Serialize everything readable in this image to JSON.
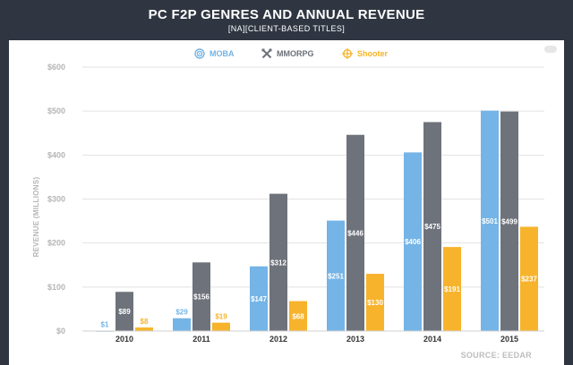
{
  "header": {
    "title": "PC F2P GENRES AND ANNUAL REVENUE",
    "subtitle": "[NA][CLIENT-BASED TITLES]"
  },
  "source": "SOURCE: EEDAR",
  "colors": {
    "moba": "#74b4e6",
    "mmorpg": "#6e727b",
    "shooter": "#f7b32b",
    "grid": "#e2e2e2"
  },
  "chart_data": {
    "type": "bar",
    "title": "PC F2P GENRES AND ANNUAL REVENUE",
    "subtitle": "[NA][CLIENT-BASED TITLES]",
    "xlabel": "",
    "ylabel": "REVENUE (MILLIONS)",
    "ylim": [
      0,
      600
    ],
    "yticks": [
      0,
      100,
      200,
      300,
      400,
      500,
      600
    ],
    "ytick_labels": [
      "$0",
      "$100",
      "$200",
      "$300",
      "$400",
      "$500",
      "$600"
    ],
    "grid": true,
    "legend_position": "top-center",
    "categories": [
      "2010",
      "2011",
      "2012",
      "2013",
      "2014",
      "2015"
    ],
    "series": [
      {
        "name": "MOBA",
        "icon": "target-icon",
        "values": [
          1,
          29,
          147,
          251,
          406,
          501
        ],
        "labels": [
          "$1",
          "$29",
          "$147",
          "$251",
          "$406",
          "$501"
        ]
      },
      {
        "name": "MMORPG",
        "icon": "swords-icon",
        "values": [
          89,
          156,
          312,
          446,
          475,
          499
        ],
        "labels": [
          "$89",
          "$156",
          "$312",
          "$446",
          "$475",
          "$499"
        ]
      },
      {
        "name": "Shooter",
        "icon": "crosshair-icon",
        "values": [
          8,
          19,
          68,
          130,
          191,
          237
        ],
        "labels": [
          "$8",
          "$19",
          "$68",
          "$130",
          "$191",
          "$237"
        ]
      }
    ]
  }
}
